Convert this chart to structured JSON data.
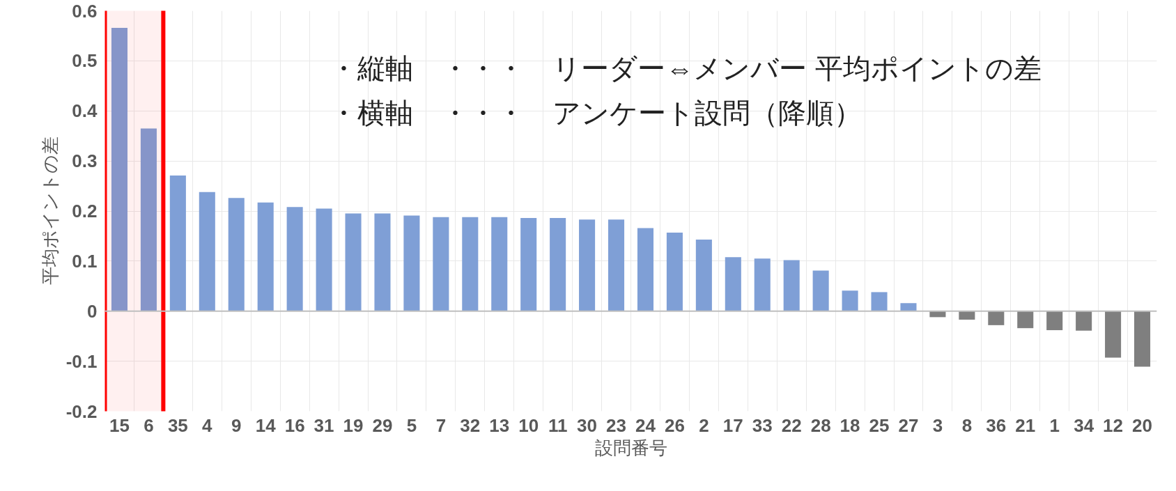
{
  "chart_data": {
    "type": "bar",
    "xlabel": "設問番号",
    "ylabel": "平均ポイントの差",
    "annotations": [
      "・縦軸　・・・　リーダー⇔メンバー 平均ポイントの差",
      "・横軸　・・・　アンケート設問（降順）"
    ],
    "categories": [
      "15",
      "6",
      "35",
      "4",
      "9",
      "14",
      "16",
      "31",
      "19",
      "29",
      "5",
      "7",
      "32",
      "13",
      "10",
      "11",
      "30",
      "23",
      "24",
      "26",
      "2",
      "17",
      "33",
      "22",
      "28",
      "18",
      "25",
      "27",
      "3",
      "8",
      "36",
      "21",
      "1",
      "34",
      "12",
      "20"
    ],
    "values": [
      0.566,
      0.365,
      0.271,
      0.238,
      0.226,
      0.217,
      0.208,
      0.205,
      0.195,
      0.195,
      0.191,
      0.188,
      0.188,
      0.188,
      0.186,
      0.186,
      0.183,
      0.183,
      0.166,
      0.157,
      0.143,
      0.108,
      0.105,
      0.102,
      0.081,
      0.041,
      0.038,
      0.016,
      -0.012,
      -0.017,
      -0.028,
      -0.034,
      -0.038,
      -0.039,
      -0.093,
      -0.111
    ],
    "colors": [
      "#7f9fd6",
      "#7f9fd6",
      "#7f9fd6",
      "#7f9fd6",
      "#7f9fd6",
      "#7f9fd6",
      "#7f9fd6",
      "#7f9fd6",
      "#7f9fd6",
      "#7f9fd6",
      "#7f9fd6",
      "#7f9fd6",
      "#7f9fd6",
      "#7f9fd6",
      "#7f9fd6",
      "#7f9fd6",
      "#7f9fd6",
      "#7f9fd6",
      "#7f9fd6",
      "#7f9fd6",
      "#7f9fd6",
      "#7f9fd6",
      "#7f9fd6",
      "#7f9fd6",
      "#7f9fd6",
      "#7f9fd6",
      "#7f9fd6",
      "#7f9fd6",
      "#7f7f7f",
      "#7f7f7f",
      "#7f7f7f",
      "#7f7f7f",
      "#7f7f7f",
      "#7f7f7f",
      "#7f7f7f",
      "#7f7f7f"
    ],
    "ylim": [
      -0.2,
      0.6
    ],
    "yticks": [
      -0.2,
      -0.1,
      0,
      0.1,
      0.2,
      0.3,
      0.4,
      0.5,
      0.6
    ],
    "bands": [
      {
        "axis": "x",
        "from": "15",
        "to": "6",
        "color": "#ff0000"
      }
    ],
    "grid": true
  }
}
